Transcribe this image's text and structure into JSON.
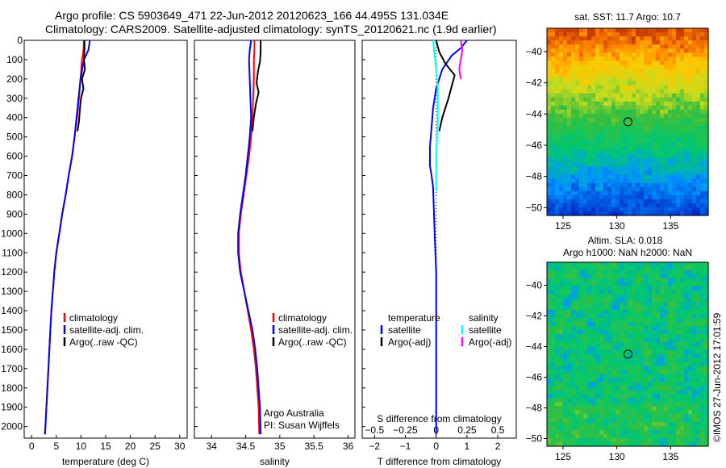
{
  "header": {
    "line1": "Argo profile: CS 5903649_471 22-Jun-2012 20120623_166 44.495S 131.034E",
    "line2": "Climatology: CARS2009. Satellite-adjusted climatology: synTS_20120621.nc (1.9d earlier)"
  },
  "credit": "©IMOS 27-Jun-2012 17:01:59",
  "colors": {
    "climatology": "#ff0000",
    "satellite": "#0000ff",
    "argo": "#000000",
    "salinity_satellite": "#00ffff",
    "salinity_argo": "#ff00ff"
  },
  "chart_data": [
    {
      "type": "line",
      "name": "temperature",
      "xlabel": "temperature (deg C)",
      "ylabel": "",
      "xlim": [
        -1.5,
        31.5
      ],
      "ylim": [
        2060,
        0
      ],
      "xticks": [
        0,
        5,
        10,
        15,
        20,
        25,
        30
      ],
      "yticks": [
        0,
        100,
        200,
        300,
        400,
        500,
        600,
        700,
        800,
        900,
        1000,
        1100,
        1200,
        1300,
        1400,
        1500,
        1600,
        1700,
        1800,
        1900,
        2000
      ],
      "legend": {
        "position": "lower-right",
        "entries": [
          "climatology",
          "satellite-adj. clim.",
          "Argo(..raw -QC)"
        ]
      },
      "series": [
        {
          "name": "climatology",
          "color": "#ff0000",
          "x": [
            10.6,
            10.5,
            10.2,
            9.9,
            9.6,
            9.2,
            8.7,
            8.2,
            7.5,
            6.9,
            6.2,
            5.6,
            5.0,
            4.6,
            4.3,
            4.0,
            3.8,
            3.6,
            3.4,
            3.2,
            3.0,
            2.8,
            2.7
          ],
          "y": [
            0,
            50,
            100,
            200,
            300,
            400,
            500,
            600,
            700,
            800,
            900,
            1000,
            1100,
            1200,
            1300,
            1400,
            1500,
            1600,
            1700,
            1800,
            1900,
            2000,
            2040
          ]
        },
        {
          "name": "satellite-adj. clim.",
          "color": "#0000ff",
          "x": [
            11.8,
            11.5,
            10.6,
            9.9,
            9.5,
            9.1,
            8.7,
            8.2,
            7.5,
            6.9,
            6.2,
            5.6,
            5.0,
            4.6,
            4.3,
            4.0,
            3.8,
            3.6,
            3.4,
            3.2,
            3.0,
            2.8,
            2.7
          ],
          "y": [
            0,
            50,
            100,
            200,
            300,
            400,
            500,
            600,
            700,
            800,
            900,
            1000,
            1100,
            1200,
            1300,
            1400,
            1500,
            1600,
            1700,
            1800,
            1900,
            2000,
            2040
          ]
        },
        {
          "name": "Argo(..raw -QC)",
          "color": "#000000",
          "x": [
            10.7,
            10.7,
            10.6,
            10.8,
            10.2,
            10.5,
            10.0,
            9.8,
            9.6,
            9.3
          ],
          "y": [
            0,
            50,
            100,
            150,
            200,
            250,
            300,
            350,
            420,
            470
          ]
        }
      ]
    },
    {
      "type": "line",
      "name": "salinity",
      "xlabel": "salinity",
      "ylabel": "",
      "xlim": [
        33.75,
        36.1
      ],
      "ylim": [
        2060,
        0
      ],
      "xticks": [
        34,
        34.5,
        35,
        35.5,
        36
      ],
      "legend": {
        "position": "lower-right",
        "entries": [
          "climatology",
          "satellite-adj. clim.",
          "Argo(..raw -QC)"
        ]
      },
      "annotation": [
        "Argo Australia",
        "PI: Susan Wijffels"
      ],
      "series": [
        {
          "name": "climatology",
          "color": "#ff0000",
          "x": [
            34.63,
            34.63,
            34.62,
            34.62,
            34.61,
            34.6,
            34.58,
            34.55,
            34.51,
            34.47,
            34.43,
            34.4,
            34.4,
            34.43,
            34.48,
            34.53,
            34.58,
            34.62,
            34.65,
            34.67,
            34.69,
            34.7
          ],
          "y": [
            0,
            50,
            100,
            200,
            300,
            400,
            500,
            600,
            700,
            800,
            900,
            1000,
            1100,
            1200,
            1300,
            1400,
            1500,
            1600,
            1700,
            1800,
            1900,
            2040
          ]
        },
        {
          "name": "satellite-adj. clim.",
          "color": "#0000ff",
          "x": [
            34.58,
            34.56,
            34.55,
            34.56,
            34.57,
            34.58,
            34.56,
            34.53,
            34.5,
            34.46,
            34.42,
            34.39,
            34.39,
            34.42,
            34.48,
            34.54,
            34.6,
            34.64,
            34.67,
            34.69,
            34.71,
            34.72
          ],
          "y": [
            0,
            50,
            100,
            200,
            300,
            400,
            500,
            600,
            700,
            800,
            900,
            1000,
            1100,
            1200,
            1300,
            1400,
            1500,
            1600,
            1700,
            1800,
            1900,
            2040
          ]
        },
        {
          "name": "Argo(..raw -QC)",
          "color": "#000000",
          "x": [
            34.72,
            34.72,
            34.71,
            34.68,
            34.66,
            34.69,
            34.65,
            34.62,
            34.6
          ],
          "y": [
            0,
            60,
            110,
            160,
            220,
            270,
            330,
            400,
            470
          ]
        }
      ]
    },
    {
      "type": "line",
      "name": "difference",
      "xlabel": "T difference from climatology",
      "x2label": "S difference from climatology",
      "xlim": [
        -2.4,
        2.6
      ],
      "ylim": [
        2060,
        0
      ],
      "xticks": [
        -2,
        -1,
        0,
        1,
        2
      ],
      "xticklabels": [
        "−2",
        "−1",
        "0",
        "1",
        "2"
      ],
      "x2ticks": [
        -0.5,
        -0.25,
        0,
        0.25,
        0.5
      ],
      "x2ticklabels": [
        "−0.5",
        "−0.25",
        "0",
        "0.25",
        "0.5"
      ],
      "legend": {
        "position": "lower",
        "groups": [
          {
            "title": "temperature",
            "entries": [
              "satellite",
              "Argo(-adj)"
            ]
          },
          {
            "title": "salinity",
            "entries": [
              "satellite",
              "Argo(-adj)"
            ]
          }
        ]
      },
      "series": [
        {
          "name": "temperature satellite",
          "color": "#0000ff",
          "x": [
            1.0,
            0.8,
            0.5,
            0.2,
            0.0,
            -0.1,
            -0.15,
            -0.2,
            -0.2,
            -0.15,
            -0.1,
            -0.08,
            -0.05,
            0.0,
            0.0,
            0.0,
            0.0
          ],
          "y": [
            0,
            40,
            80,
            150,
            250,
            350,
            450,
            550,
            650,
            700,
            760,
            850,
            1000,
            1200,
            1500,
            1800,
            2040
          ]
        },
        {
          "name": "temperature Argo(-adj)",
          "color": "#000000",
          "x": [
            0.0,
            0.1,
            0.3,
            0.6,
            0.5,
            0.4,
            0.2,
            0.1
          ],
          "y": [
            0,
            60,
            120,
            180,
            240,
            300,
            400,
            470
          ]
        },
        {
          "name": "salinity satellite",
          "color": "#00ffff",
          "x": [
            -0.1,
            -0.05,
            0.0,
            0.05,
            0.05,
            0.0,
            0.0,
            0.0,
            0.0
          ],
          "y": [
            0,
            80,
            150,
            250,
            400,
            600,
            700,
            750,
            780
          ]
        },
        {
          "name": "salinity Argo(-adj)",
          "color": "#ff00ff",
          "x": [
            0.8,
            0.85,
            0.8,
            0.75,
            0.8
          ],
          "y": [
            0,
            50,
            100,
            150,
            200
          ]
        }
      ]
    },
    {
      "type": "heatmap",
      "name": "sst-map",
      "title": "sat. SST: 11.7 Argo: 10.7",
      "xlim": [
        123.5,
        138.5
      ],
      "ylim": [
        -50.5,
        -38.5
      ],
      "xticks": [
        125,
        130,
        135
      ],
      "yticks": [
        -40,
        -42,
        -44,
        -46,
        -48,
        -50
      ],
      "marker": {
        "lon": 131.034,
        "lat": -44.495
      }
    },
    {
      "type": "heatmap",
      "name": "sla-map",
      "title": "Altim. SLA: 0.018",
      "subtitle": "Argo h1000: NaN h2000: NaN",
      "xlim": [
        123.5,
        138.5
      ],
      "ylim": [
        -50.5,
        -38.5
      ],
      "xticks": [
        125,
        130,
        135
      ],
      "yticks": [
        -40,
        -42,
        -44,
        -46,
        -48,
        -50
      ],
      "marker": {
        "lon": 131.034,
        "lat": -44.495
      }
    }
  ]
}
